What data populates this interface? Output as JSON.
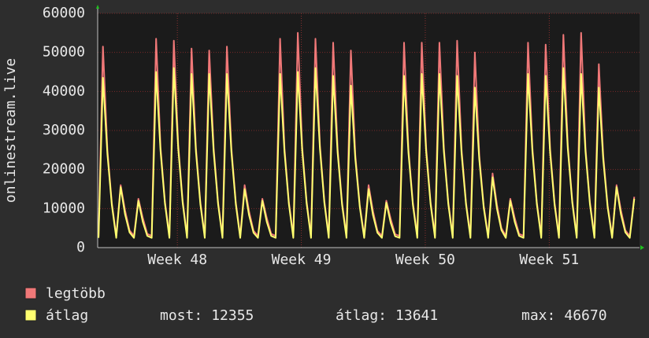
{
  "chart_data": {
    "type": "line",
    "y_label": "onlinestream.live",
    "xlim": [
      0,
      30.6
    ],
    "xticks": [
      {
        "value": 4.5,
        "label": "Week 48"
      },
      {
        "value": 11.5,
        "label": "Week 49"
      },
      {
        "value": 18.5,
        "label": "Week 50"
      },
      {
        "value": 25.5,
        "label": "Week 51"
      }
    ],
    "ylim": [
      0,
      60000
    ],
    "yticks": [
      0,
      10000,
      20000,
      30000,
      40000,
      50000,
      60000
    ],
    "grid": true,
    "x": [
      0.05,
      0.3,
      0.55,
      0.8,
      1.05,
      1.3,
      1.55,
      1.8,
      2.05,
      2.3,
      2.55,
      2.8,
      3.05,
      3.3,
      3.55,
      3.8,
      4.05,
      4.3,
      4.55,
      4.8,
      5.05,
      5.3,
      5.55,
      5.8,
      6.05,
      6.3,
      6.55,
      6.8,
      7.05,
      7.3,
      7.55,
      7.8,
      8.05,
      8.3,
      8.55,
      8.8,
      9.05,
      9.3,
      9.55,
      9.8,
      10.05,
      10.3,
      10.55,
      10.8,
      11.05,
      11.3,
      11.55,
      11.8,
      12.05,
      12.3,
      12.55,
      12.8,
      13.05,
      13.3,
      13.55,
      13.8,
      14.05,
      14.3,
      14.55,
      14.8,
      15.05,
      15.3,
      15.55,
      15.8,
      16.05,
      16.3,
      16.55,
      16.8,
      17.05,
      17.3,
      17.55,
      17.8,
      18.05,
      18.3,
      18.55,
      18.8,
      19.05,
      19.3,
      19.55,
      19.8,
      20.05,
      20.3,
      20.55,
      20.8,
      21.05,
      21.3,
      21.55,
      21.8,
      22.05,
      22.3,
      22.55,
      22.8,
      23.05,
      23.3,
      23.55,
      23.8,
      24.05,
      24.3,
      24.55,
      24.8,
      25.05,
      25.3,
      25.55,
      25.8,
      26.05,
      26.3,
      26.55,
      26.8,
      27.05,
      27.3,
      27.55,
      27.8,
      28.05,
      28.3,
      28.55,
      28.8,
      29.05,
      29.3,
      29.55,
      29.8,
      30.05,
      30.3
    ],
    "series": [
      {
        "name": "legtöbb",
        "color": "#f07878",
        "values": [
          3000,
          51500,
          24900,
          11400,
          3000,
          16000,
          9500,
          4400,
          3000,
          12500,
          7600,
          3500,
          3000,
          53500,
          25800,
          11800,
          3000,
          53000,
          26300,
          12000,
          3000,
          51000,
          25500,
          11600,
          3000,
          50500,
          25500,
          11600,
          3000,
          51500,
          25500,
          11600,
          3000,
          16000,
          9300,
          4300,
          3000,
          12500,
          7600,
          3500,
          3000,
          53500,
          25500,
          11600,
          3000,
          55000,
          25800,
          11800,
          3000,
          53500,
          26300,
          12000,
          3000,
          52500,
          25200,
          11500,
          3000,
          50500,
          23800,
          10900,
          3000,
          16000,
          9300,
          4300,
          3000,
          12000,
          7300,
          3400,
          3000,
          52500,
          25200,
          11500,
          3000,
          52500,
          25500,
          11600,
          3000,
          52500,
          25500,
          11600,
          3000,
          53000,
          25200,
          11500,
          3000,
          50000,
          23600,
          10800,
          3000,
          19000,
          10900,
          5000,
          3000,
          12500,
          7600,
          3500,
          3000,
          52500,
          25500,
          11600,
          3000,
          52000,
          25200,
          11500,
          3000,
          54500,
          26300,
          12000,
          3000,
          55000,
          25500,
          11600,
          3000,
          47000,
          23600,
          10800,
          3000,
          16000,
          9500,
          4400,
          3000,
          13000
        ]
      },
      {
        "name": "átlag",
        "color": "#ffff70",
        "values": [
          2500,
          43500,
          23900,
          10900,
          2500,
          15500,
          8500,
          3900,
          2500,
          12000,
          6600,
          3000,
          2500,
          45000,
          24800,
          11300,
          2500,
          46000,
          25300,
          11500,
          2500,
          44500,
          24500,
          11100,
          2500,
          44500,
          24500,
          11100,
          2500,
          44500,
          24500,
          11100,
          2500,
          15000,
          8300,
          3800,
          2500,
          12000,
          6600,
          3000,
          2500,
          44500,
          24500,
          11100,
          2500,
          45000,
          24800,
          11300,
          2500,
          46000,
          25300,
          11500,
          2500,
          44000,
          24200,
          11000,
          2500,
          41500,
          22800,
          10400,
          2500,
          15000,
          8300,
          3800,
          2500,
          11500,
          6300,
          2900,
          2500,
          44000,
          24200,
          11000,
          2500,
          44500,
          24500,
          11100,
          2500,
          44500,
          24500,
          11100,
          2500,
          44000,
          24200,
          11000,
          2500,
          41000,
          22600,
          10300,
          2500,
          18000,
          9900,
          4500,
          2500,
          12000,
          6600,
          3000,
          2500,
          44500,
          24500,
          11100,
          2500,
          44000,
          24200,
          11000,
          2500,
          46000,
          25300,
          11500,
          2500,
          44500,
          24500,
          11100,
          2500,
          41000,
          22600,
          10300,
          2500,
          15500,
          8500,
          3900,
          2500,
          12500
        ]
      }
    ],
    "stats": [
      {
        "label": "most:",
        "value": 12355
      },
      {
        "label": "átlag:",
        "value": 13641
      },
      {
        "label": "max:",
        "value": 46670
      }
    ]
  }
}
